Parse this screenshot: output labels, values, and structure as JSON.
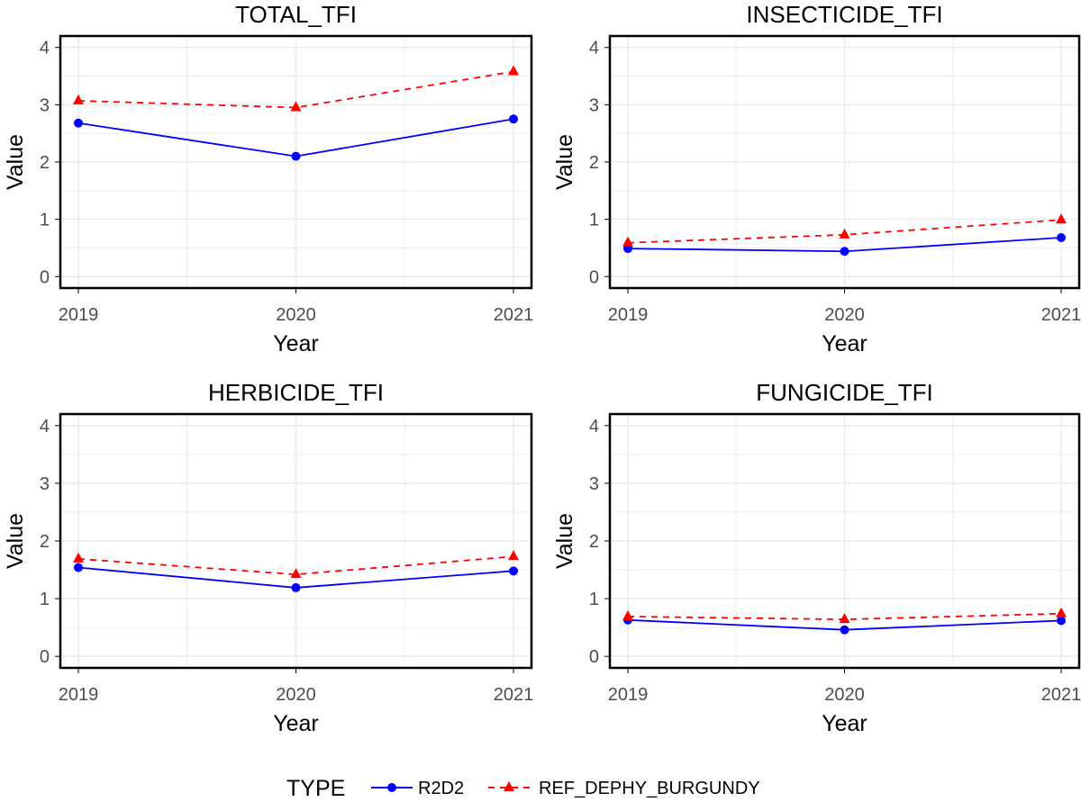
{
  "colors": {
    "r2d2": "#0000ff",
    "ref": "#ff0000",
    "grid": "#ebebeb",
    "axis": "#000000",
    "tick_text": "#4d4d4d",
    "text": "#000000"
  },
  "legend": {
    "title": "TYPE",
    "position": "bottom",
    "entries": [
      {
        "label": "R2D2",
        "marker": "circle",
        "line": "solid"
      },
      {
        "label": "REF_DEPHY_BURGUNDY",
        "marker": "triangle",
        "line": "dashed"
      }
    ]
  },
  "chart_data": [
    {
      "type": "line",
      "title": "TOTAL_TFI",
      "xlabel": "Year",
      "ylabel": "Value",
      "categories": [
        "2019",
        "2020",
        "2021"
      ],
      "yticks": [
        "0",
        "1",
        "2",
        "3",
        "4"
      ],
      "ylim": [
        -0.2,
        4.2
      ],
      "series": [
        {
          "name": "R2D2",
          "values": [
            2.68,
            2.1,
            2.75
          ]
        },
        {
          "name": "REF_DEPHY_BURGUNDY",
          "values": [
            3.07,
            2.95,
            3.58
          ]
        }
      ]
    },
    {
      "type": "line",
      "title": "INSECTICIDE_TFI",
      "xlabel": "Year",
      "ylabel": "Value",
      "categories": [
        "2019",
        "2020",
        "2021"
      ],
      "yticks": [
        "0",
        "1",
        "2",
        "3",
        "4"
      ],
      "ylim": [
        -0.2,
        4.2
      ],
      "series": [
        {
          "name": "R2D2",
          "values": [
            0.49,
            0.44,
            0.68
          ]
        },
        {
          "name": "REF_DEPHY_BURGUNDY",
          "values": [
            0.59,
            0.73,
            0.99
          ]
        }
      ]
    },
    {
      "type": "line",
      "title": "HERBICIDE_TFI",
      "xlabel": "Year",
      "ylabel": "Value",
      "categories": [
        "2019",
        "2020",
        "2021"
      ],
      "yticks": [
        "0",
        "1",
        "2",
        "3",
        "4"
      ],
      "ylim": [
        -0.2,
        4.2
      ],
      "series": [
        {
          "name": "R2D2",
          "values": [
            1.54,
            1.19,
            1.48
          ]
        },
        {
          "name": "REF_DEPHY_BURGUNDY",
          "values": [
            1.69,
            1.42,
            1.73
          ]
        }
      ]
    },
    {
      "type": "line",
      "title": "FUNGICIDE_TFI",
      "xlabel": "Year",
      "ylabel": "Value",
      "categories": [
        "2019",
        "2020",
        "2021"
      ],
      "yticks": [
        "0",
        "1",
        "2",
        "3",
        "4"
      ],
      "ylim": [
        -0.2,
        4.2
      ],
      "series": [
        {
          "name": "R2D2",
          "values": [
            0.63,
            0.46,
            0.62
          ]
        },
        {
          "name": "REF_DEPHY_BURGUNDY",
          "values": [
            0.69,
            0.64,
            0.74
          ]
        }
      ]
    }
  ]
}
